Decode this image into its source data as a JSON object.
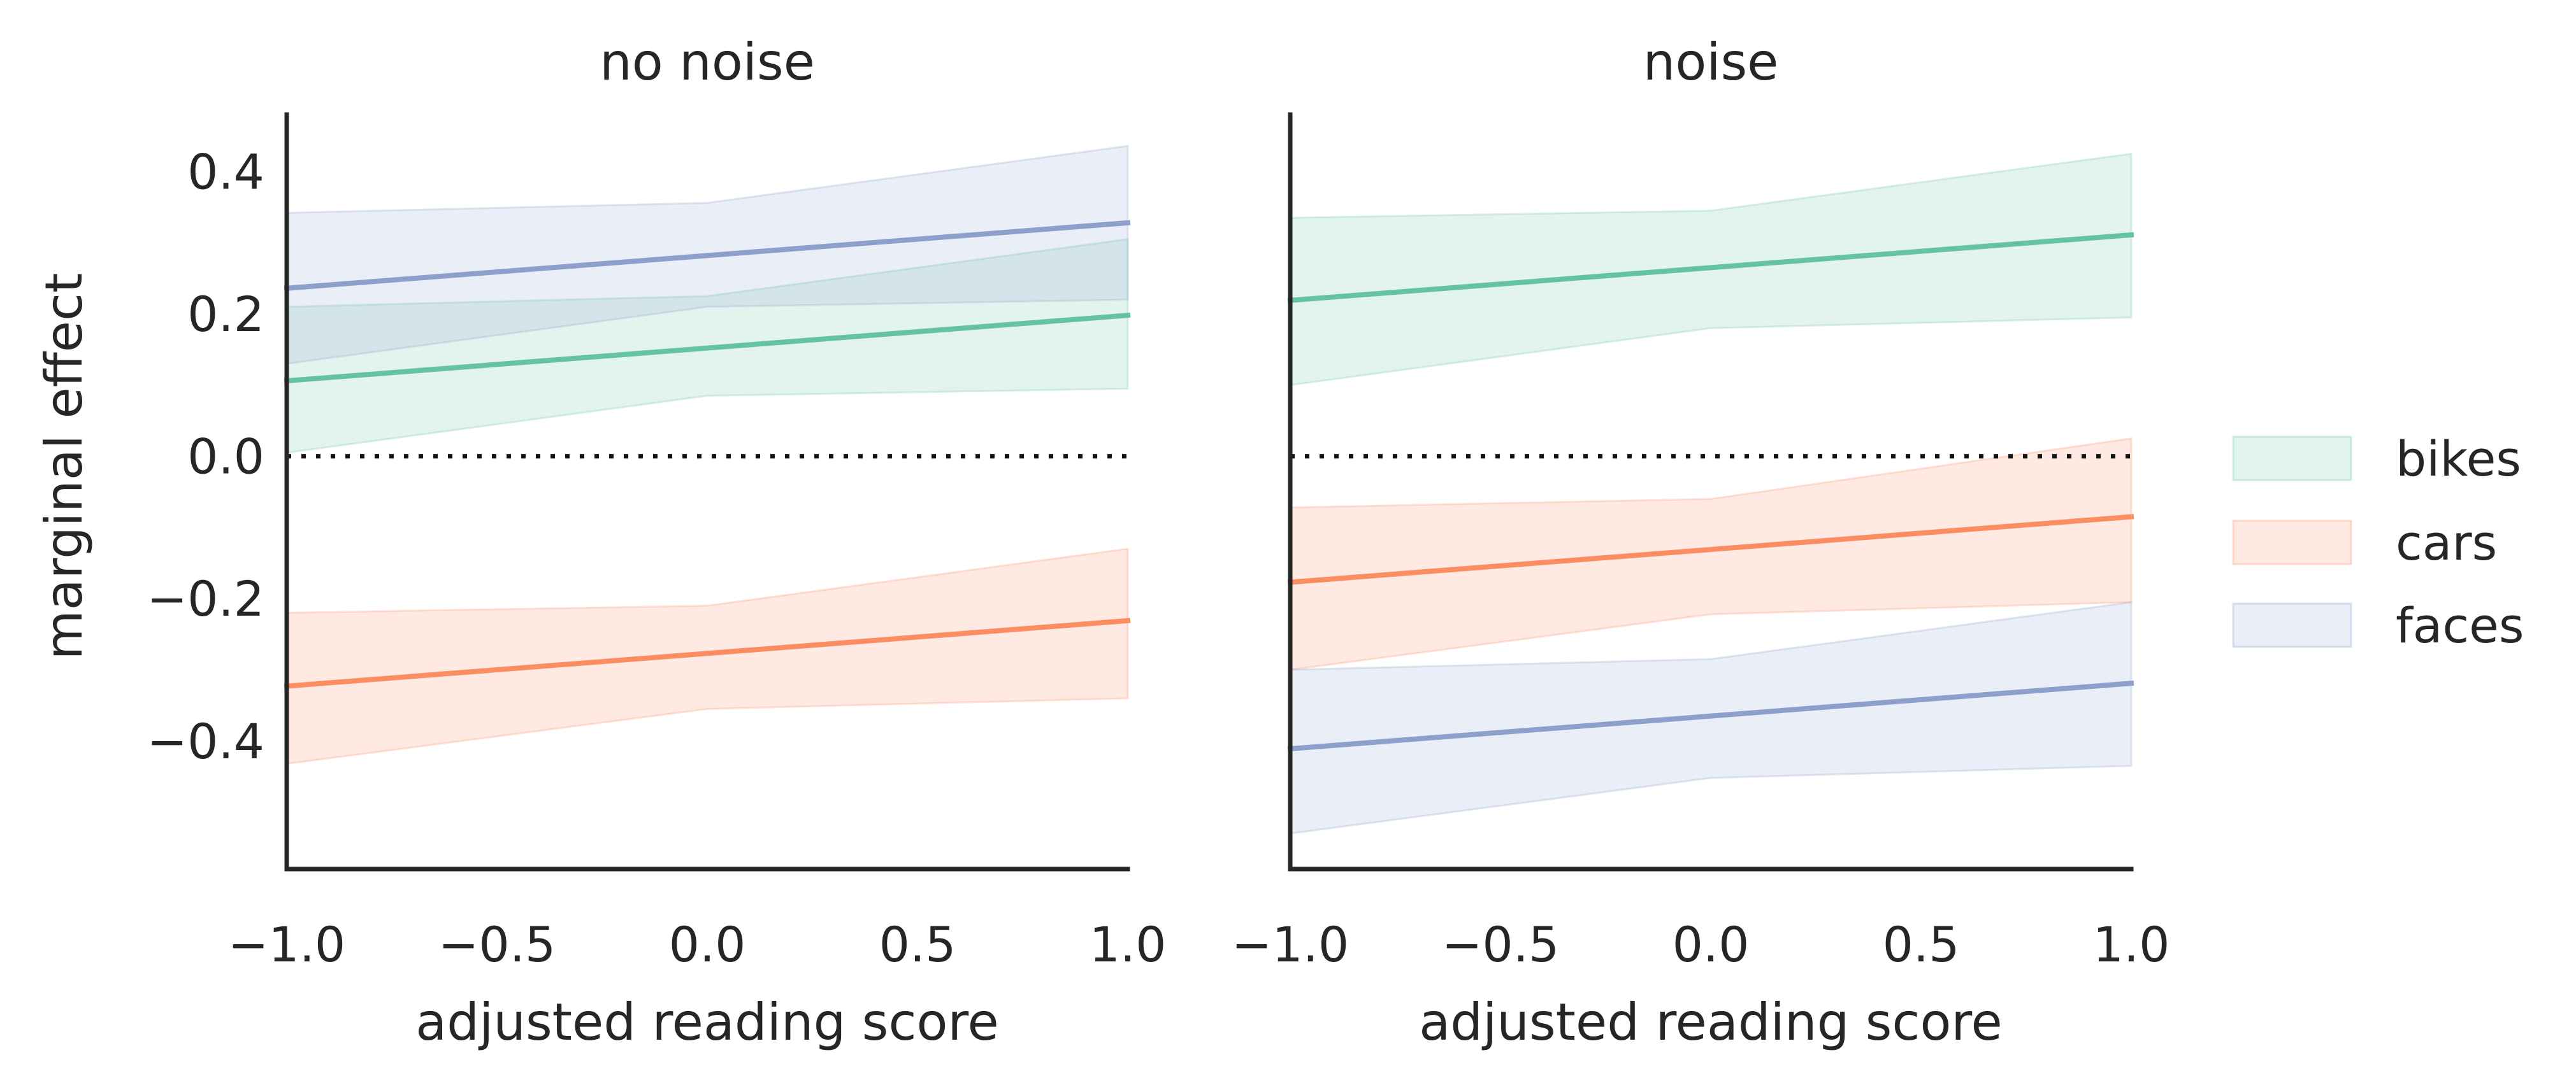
{
  "chart_data": {
    "type": "line",
    "ylabel": "marginal effect",
    "legend": {
      "placement": "right",
      "entries": [
        "bikes",
        "cars",
        "faces"
      ]
    },
    "colors": {
      "bikes": "#66c2a5",
      "cars": "#fc8d62",
      "faces": "#8da0cb",
      "axis": "#262626",
      "zero_line": "#111111"
    },
    "ylim": [
      -0.58,
      0.48
    ],
    "yticks": [
      0.4,
      0.2,
      0.0,
      -0.2,
      -0.4
    ],
    "ytick_labels": [
      "0.4",
      "0.2",
      "0.0",
      "−0.2",
      "−0.4"
    ],
    "xlim": [
      -1.0,
      1.0
    ],
    "xticks": [
      -1.0,
      -0.5,
      0.0,
      0.5,
      1.0
    ],
    "xtick_labels": [
      "−1.0",
      "−0.5",
      "0.0",
      "0.5",
      "1.0"
    ],
    "reference_line": {
      "y": 0.0,
      "style": "dotted"
    },
    "panels": [
      {
        "title": "no noise",
        "xlabel": "adjusted reading score",
        "x": [
          -1.0,
          0.0,
          1.0
        ],
        "series": [
          {
            "name": "bikes",
            "values": [
              0.106,
              0.152,
              0.198
            ],
            "lower": [
              0.005,
              0.085,
              0.095
            ],
            "upper": [
              0.21,
              0.225,
              0.305
            ]
          },
          {
            "name": "cars",
            "values": [
              -0.323,
              -0.277,
              -0.231
            ],
            "lower": [
              -0.432,
              -0.355,
              -0.34
            ],
            "upper": [
              -0.22,
              -0.21,
              -0.13
            ]
          },
          {
            "name": "faces",
            "values": [
              0.236,
              0.282,
              0.328
            ],
            "lower": [
              0.13,
              0.21,
              0.22
            ],
            "upper": [
              0.342,
              0.356,
              0.436
            ]
          }
        ]
      },
      {
        "title": "noise",
        "xlabel": "adjusted reading score",
        "x": [
          -1.0,
          0.0,
          1.0
        ],
        "series": [
          {
            "name": "bikes",
            "values": [
              0.219,
              0.265,
              0.311
            ],
            "lower": [
              0.1,
              0.18,
              0.195
            ],
            "upper": [
              0.335,
              0.345,
              0.425
            ]
          },
          {
            "name": "cars",
            "values": [
              -0.177,
              -0.131,
              -0.085
            ],
            "lower": [
              -0.3,
              -0.222,
              -0.205
            ],
            "upper": [
              -0.072,
              -0.06,
              0.025
            ]
          },
          {
            "name": "faces",
            "values": [
              -0.411,
              -0.365,
              -0.319
            ],
            "lower": [
              -0.53,
              -0.452,
              -0.435
            ],
            "upper": [
              -0.3,
              -0.285,
              -0.205
            ]
          }
        ]
      }
    ]
  }
}
